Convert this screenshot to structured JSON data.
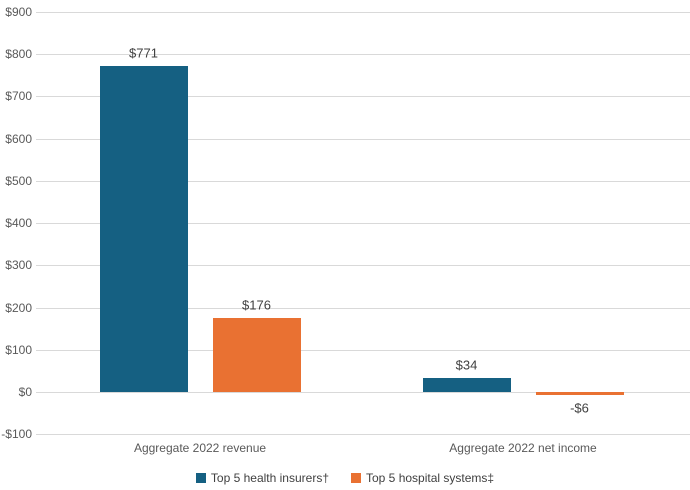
{
  "chart_data": {
    "type": "bar",
    "title": "",
    "xlabel": "",
    "ylabel": "",
    "categories": [
      "Aggregate 2022 revenue",
      "Aggregate 2022 net income"
    ],
    "series": [
      {
        "name": "Top 5 health insurers†",
        "color": "#156082",
        "values": [
          771,
          34
        ],
        "data_labels": [
          "$771",
          "$34"
        ]
      },
      {
        "name": "Top 5 hospital systems‡",
        "color": "#E97132",
        "values": [
          176,
          -6
        ],
        "data_labels": [
          "$176",
          "-$6"
        ]
      }
    ],
    "y_axis": {
      "min": -100,
      "max": 900,
      "step": 100,
      "ticks": [
        {
          "value": 900,
          "label": "$900"
        },
        {
          "value": 800,
          "label": "$800"
        },
        {
          "value": 700,
          "label": "$700"
        },
        {
          "value": 600,
          "label": "$600"
        },
        {
          "value": 500,
          "label": "$500"
        },
        {
          "value": 400,
          "label": "$400"
        },
        {
          "value": 300,
          "label": "$300"
        },
        {
          "value": 200,
          "label": "$200"
        },
        {
          "value": 100,
          "label": "$100"
        },
        {
          "value": 0,
          "label": "$0"
        },
        {
          "value": -100,
          "label": "-$100"
        }
      ]
    },
    "grid": true,
    "legend_position": "bottom"
  },
  "colors": {
    "background": "#FFFFFF",
    "gridline": "#D9D9D9",
    "axis_text": "#595959",
    "data_label_text": "#404040",
    "series1": "#156082",
    "series2": "#E97132"
  }
}
